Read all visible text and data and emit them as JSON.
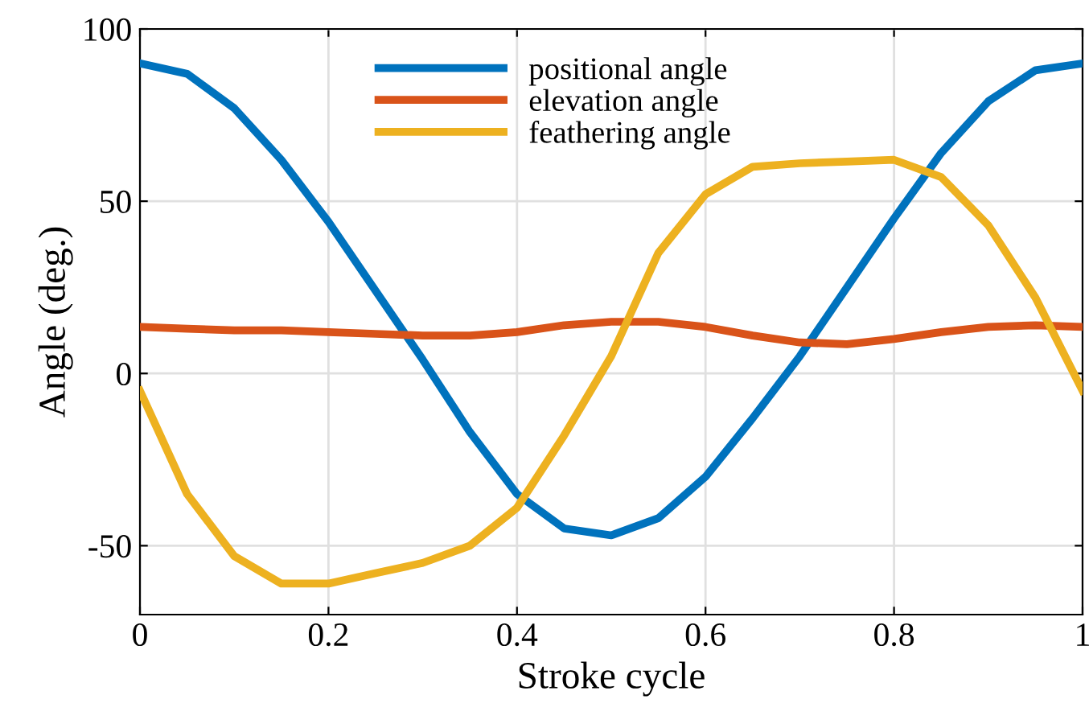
{
  "chart_data": {
    "type": "line",
    "xlabel": "Stroke cycle",
    "ylabel": "Angle (deg.)",
    "x": [
      0,
      0.05,
      0.1,
      0.15,
      0.2,
      0.25,
      0.3,
      0.35,
      0.4,
      0.45,
      0.5,
      0.55,
      0.6,
      0.65,
      0.7,
      0.75,
      0.8,
      0.85,
      0.9,
      0.95,
      1
    ],
    "series": [
      {
        "name": "positional angle",
        "color": "#0072bd",
        "values": [
          90,
          87,
          77,
          62,
          44,
          24,
          4,
          -17,
          -35,
          -45,
          -47,
          -42,
          -30,
          -13,
          5,
          25,
          45,
          64,
          79,
          88,
          90
        ]
      },
      {
        "name": "elevation angle",
        "color": "#d95319",
        "values": [
          13.5,
          13,
          12.5,
          12.5,
          12,
          11.5,
          11,
          11,
          12,
          14,
          15,
          15,
          13.5,
          11,
          9,
          8.5,
          10,
          12,
          13.5,
          14,
          13.5
        ]
      },
      {
        "name": "feathering angle",
        "color": "#edb120",
        "values": [
          -5,
          -35,
          -53,
          -61,
          -61,
          -58,
          -55,
          -50,
          -39,
          -18,
          5,
          35,
          52,
          60,
          61,
          61.5,
          62,
          57,
          43,
          22,
          -5
        ]
      }
    ],
    "xlim": [
      0,
      1
    ],
    "xticks": [
      0,
      0.2,
      0.4,
      0.6,
      0.8,
      1
    ],
    "ylim": [
      -70,
      100
    ],
    "yticks": [
      -50,
      0,
      50,
      100
    ],
    "grid": true,
    "legend": "top",
    "line_style": "solid",
    "marker": "none"
  }
}
